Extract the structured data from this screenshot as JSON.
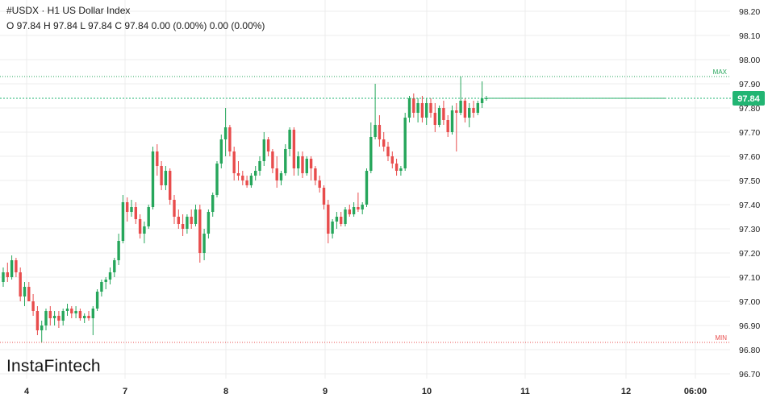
{
  "header": {
    "title": "#USDX · H1 US Dollar Index",
    "ohlc": "O 97.84 H 97.84 L 97.84 C 97.84 0.00 (0.00%) 0.00 (0.00%)"
  },
  "branding": {
    "logo_text": "InstaFintech"
  },
  "colors": {
    "up": "#26a65b",
    "down": "#e84c4c",
    "grid": "#ececec",
    "price_tag": "#22b573"
  },
  "chart_data": {
    "type": "candlestick",
    "ylim": [
      96.65,
      98.28
    ],
    "y_ticks": [
      "98.20",
      "98.10",
      "98.00",
      "97.90",
      "97.80",
      "97.70",
      "97.60",
      "97.50",
      "97.40",
      "97.30",
      "97.20",
      "97.10",
      "97.00",
      "96.90",
      "96.80",
      "96.70"
    ],
    "x_ticks": [
      "4",
      "7",
      "8",
      "9",
      "10",
      "11",
      "12",
      "06:00"
    ],
    "current_price": {
      "value": 97.84,
      "label": "97.84"
    },
    "max": {
      "value": 97.93,
      "label": "MAX"
    },
    "min": {
      "value": 96.83,
      "label": "MIN"
    },
    "candles": [
      [
        97.08,
        97.14,
        97.06,
        97.12
      ],
      [
        97.12,
        97.16,
        97.08,
        97.1
      ],
      [
        97.1,
        97.19,
        97.09,
        97.17
      ],
      [
        97.17,
        97.18,
        97.1,
        97.12
      ],
      [
        97.12,
        97.14,
        97.0,
        97.02
      ],
      [
        97.02,
        97.08,
        96.98,
        97.06
      ],
      [
        97.06,
        97.08,
        97.0,
        97.0
      ],
      [
        97.0,
        97.03,
        96.94,
        96.96
      ],
      [
        96.96,
        96.98,
        96.86,
        96.88
      ],
      [
        96.88,
        96.92,
        96.83,
        96.9
      ],
      [
        96.9,
        96.97,
        96.88,
        96.96
      ],
      [
        96.96,
        96.98,
        96.9,
        96.93
      ],
      [
        96.93,
        96.96,
        96.9,
        96.94
      ],
      [
        96.94,
        96.96,
        96.89,
        96.92
      ],
      [
        96.92,
        96.97,
        96.9,
        96.96
      ],
      [
        96.96,
        96.99,
        96.94,
        96.97
      ],
      [
        96.97,
        96.98,
        96.93,
        96.95
      ],
      [
        96.95,
        96.98,
        96.93,
        96.96
      ],
      [
        96.96,
        96.97,
        96.92,
        96.93
      ],
      [
        96.93,
        96.95,
        96.91,
        96.94
      ],
      [
        96.94,
        96.96,
        96.92,
        96.93
      ],
      [
        96.93,
        96.98,
        96.86,
        96.97
      ],
      [
        96.97,
        97.05,
        96.96,
        97.04
      ],
      [
        97.04,
        97.09,
        97.02,
        97.08
      ],
      [
        97.08,
        97.1,
        97.05,
        97.09
      ],
      [
        97.09,
        97.14,
        97.07,
        97.12
      ],
      [
        97.12,
        97.18,
        97.1,
        97.17
      ],
      [
        97.17,
        97.28,
        97.15,
        97.25
      ],
      [
        97.25,
        97.44,
        97.24,
        97.41
      ],
      [
        97.41,
        97.43,
        97.33,
        97.37
      ],
      [
        97.37,
        97.42,
        97.35,
        97.39
      ],
      [
        97.39,
        97.41,
        97.32,
        97.34
      ],
      [
        97.34,
        97.36,
        97.26,
        97.28
      ],
      [
        97.28,
        97.33,
        97.24,
        97.31
      ],
      [
        97.31,
        97.4,
        97.3,
        97.39
      ],
      [
        97.39,
        97.64,
        97.38,
        97.62
      ],
      [
        97.62,
        97.65,
        97.52,
        97.56
      ],
      [
        97.56,
        97.58,
        97.46,
        97.48
      ],
      [
        97.48,
        97.56,
        97.46,
        97.54
      ],
      [
        97.54,
        97.55,
        97.4,
        97.42
      ],
      [
        97.42,
        97.44,
        97.32,
        97.35
      ],
      [
        97.35,
        97.38,
        97.3,
        97.32
      ],
      [
        97.32,
        97.36,
        97.27,
        97.3
      ],
      [
        97.3,
        97.36,
        97.28,
        97.35
      ],
      [
        97.35,
        97.38,
        97.3,
        97.32
      ],
      [
        97.32,
        97.4,
        97.31,
        97.38
      ],
      [
        97.38,
        97.4,
        97.16,
        97.2
      ],
      [
        97.2,
        97.3,
        97.17,
        97.28
      ],
      [
        97.28,
        97.38,
        97.26,
        97.37
      ],
      [
        97.37,
        97.45,
        97.35,
        97.44
      ],
      [
        97.44,
        97.58,
        97.43,
        97.57
      ],
      [
        97.57,
        97.69,
        97.55,
        97.67
      ],
      [
        97.67,
        97.8,
        97.6,
        97.72
      ],
      [
        97.72,
        97.73,
        97.6,
        97.62
      ],
      [
        97.62,
        97.64,
        97.5,
        97.53
      ],
      [
        97.53,
        97.58,
        97.5,
        97.52
      ],
      [
        97.52,
        97.54,
        97.48,
        97.5
      ],
      [
        97.5,
        97.52,
        97.47,
        97.48
      ],
      [
        97.48,
        97.53,
        97.47,
        97.52
      ],
      [
        97.52,
        97.56,
        97.5,
        97.54
      ],
      [
        97.54,
        97.6,
        97.52,
        97.58
      ],
      [
        97.58,
        97.7,
        97.56,
        97.67
      ],
      [
        97.67,
        97.68,
        97.6,
        97.62
      ],
      [
        97.62,
        97.63,
        97.53,
        97.55
      ],
      [
        97.55,
        97.6,
        97.47,
        97.5
      ],
      [
        97.5,
        97.54,
        97.48,
        97.53
      ],
      [
        97.53,
        97.65,
        97.52,
        97.63
      ],
      [
        97.63,
        97.72,
        97.6,
        97.71
      ],
      [
        97.71,
        97.72,
        97.52,
        97.55
      ],
      [
        97.55,
        97.62,
        97.52,
        97.6
      ],
      [
        97.6,
        97.62,
        97.51,
        97.53
      ],
      [
        97.53,
        97.6,
        97.52,
        97.59
      ],
      [
        97.59,
        97.6,
        97.5,
        97.55
      ],
      [
        97.55,
        97.56,
        97.48,
        97.5
      ],
      [
        97.5,
        97.52,
        97.45,
        97.47
      ],
      [
        97.47,
        97.48,
        97.38,
        97.4
      ],
      [
        97.4,
        97.42,
        97.24,
        97.28
      ],
      [
        97.28,
        97.34,
        97.26,
        97.33
      ],
      [
        97.33,
        97.37,
        97.3,
        97.35
      ],
      [
        97.35,
        97.37,
        97.31,
        97.32
      ],
      [
        97.32,
        97.39,
        97.31,
        97.38
      ],
      [
        97.38,
        97.4,
        97.35,
        97.36
      ],
      [
        97.36,
        97.41,
        97.35,
        97.39
      ],
      [
        97.39,
        97.45,
        97.37,
        97.38
      ],
      [
        97.38,
        97.41,
        97.36,
        97.4
      ],
      [
        97.4,
        97.55,
        97.39,
        97.54
      ],
      [
        97.54,
        97.74,
        97.53,
        97.68
      ],
      [
        97.68,
        97.9,
        97.67,
        97.73
      ],
      [
        97.73,
        97.77,
        97.64,
        97.67
      ],
      [
        97.67,
        97.7,
        97.62,
        97.64
      ],
      [
        97.64,
        97.66,
        97.58,
        97.6
      ],
      [
        97.6,
        97.62,
        97.55,
        97.57
      ],
      [
        97.57,
        97.59,
        97.52,
        97.54
      ],
      [
        97.54,
        97.56,
        97.52,
        97.55
      ],
      [
        97.55,
        97.78,
        97.54,
        97.76
      ],
      [
        97.76,
        97.85,
        97.74,
        97.84
      ],
      [
        97.84,
        97.86,
        97.76,
        97.78
      ],
      [
        97.78,
        97.84,
        97.74,
        97.82
      ],
      [
        97.82,
        97.85,
        97.74,
        97.76
      ],
      [
        97.76,
        97.84,
        97.73,
        97.82
      ],
      [
        97.82,
        97.84,
        97.76,
        97.78
      ],
      [
        97.78,
        97.82,
        97.7,
        97.73
      ],
      [
        97.73,
        97.81,
        97.72,
        97.8
      ],
      [
        97.8,
        97.83,
        97.73,
        97.75
      ],
      [
        97.75,
        97.77,
        97.68,
        97.7
      ],
      [
        97.7,
        97.81,
        97.69,
        97.79
      ],
      [
        97.79,
        97.82,
        97.62,
        97.78
      ],
      [
        97.78,
        97.93,
        97.77,
        97.83
      ],
      [
        97.83,
        97.84,
        97.74,
        97.76
      ],
      [
        97.76,
        97.82,
        97.72,
        97.8
      ],
      [
        97.8,
        97.83,
        97.76,
        97.78
      ],
      [
        97.78,
        97.83,
        97.77,
        97.82
      ],
      [
        97.82,
        97.91,
        97.8,
        97.84
      ],
      [
        97.84,
        97.85,
        97.83,
        97.84
      ]
    ]
  }
}
